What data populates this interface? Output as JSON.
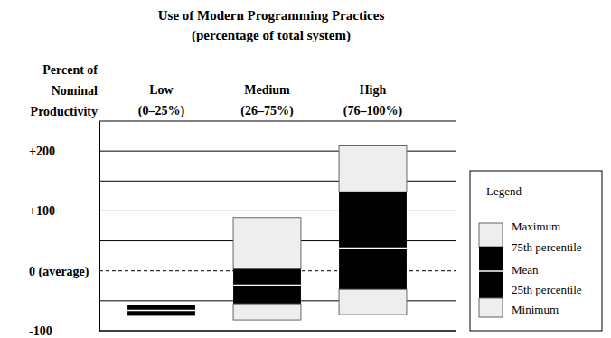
{
  "chart_data": {
    "type": "box",
    "title": "Use of Modern Programming Practices",
    "subtitle": "(percentage of total system)",
    "y_label": "Percent of\nNominal\nProductivity",
    "categories": [
      "Low\n(0–25%)",
      "Medium\n(26–75%)",
      "High\n(76–100%)"
    ],
    "series": [
      {
        "name": "Maximum",
        "color": "#eeeeee",
        "values": [
          -57,
          89,
          210
        ]
      },
      {
        "name": "75th percentile",
        "color": "#000000",
        "values": [
          -57,
          3,
          132
        ]
      },
      {
        "name": "Mean",
        "color": "#ffffff",
        "values": [
          -66,
          -24,
          38
        ]
      },
      {
        "name": "25th percentile",
        "color": "#000000",
        "values": [
          -75,
          -55,
          -31
        ]
      },
      {
        "name": "Minimum",
        "color": "#eeeeee",
        "values": [
          -75,
          -82,
          -73
        ]
      }
    ],
    "ylim": [
      -100,
      250
    ],
    "yticks": [
      -100,
      {
        "value": 0,
        "label": "0 (average)"
      },
      {
        "value": 100,
        "label": "+100"
      },
      {
        "value": 200,
        "label": "+200"
      }
    ],
    "grid": true,
    "legend_title": "Legend",
    "legend": "lower right"
  }
}
